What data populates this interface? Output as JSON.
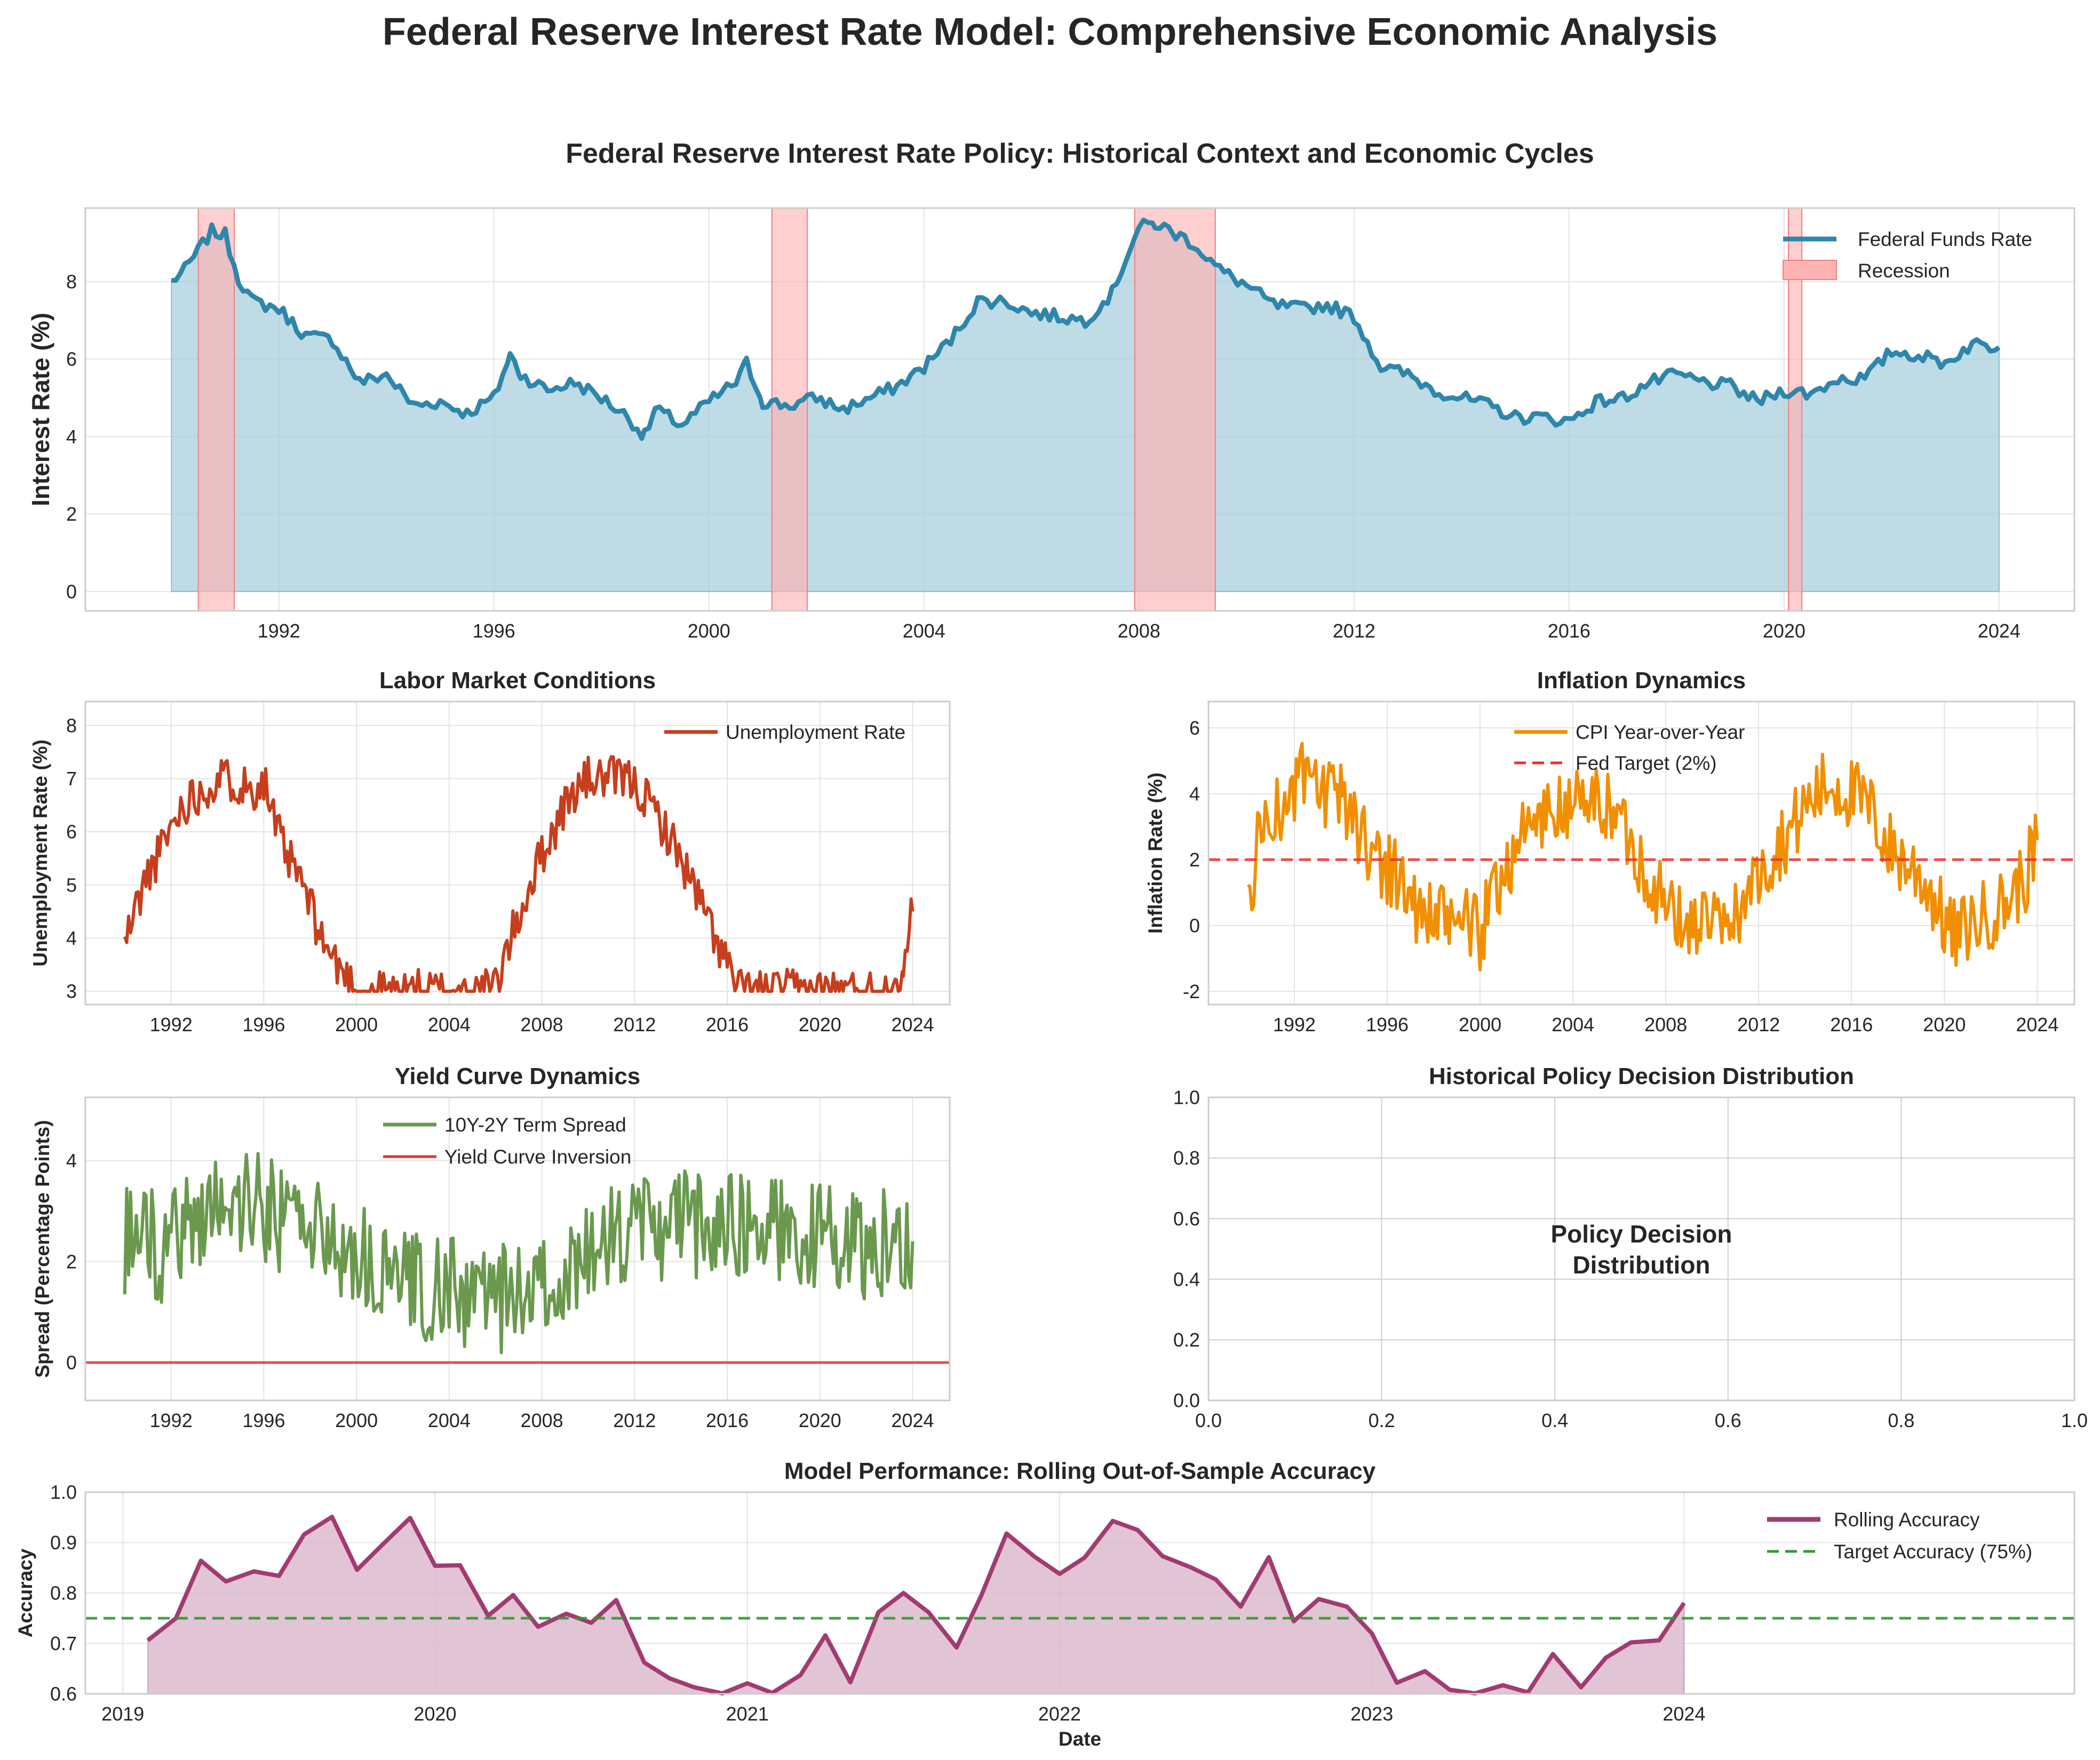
{
  "figure": {
    "suptitle": "Federal Reserve Interest Rate Model: Comprehensive Economic Analysis"
  },
  "chart_data": [
    {
      "id": "rates",
      "type": "area",
      "title": "Federal Reserve Interest Rate Policy: Historical Context and Economic Cycles",
      "xlabel": "",
      "ylabel": "Interest Rate (%)",
      "xlim": [
        1988.4,
        2025.4
      ],
      "ylim": [
        -0.5,
        9.9
      ],
      "yticks": [
        0,
        2,
        4,
        6,
        8
      ],
      "xticks": [
        1992,
        1996,
        2000,
        2004,
        2008,
        2012,
        2016,
        2020,
        2024
      ],
      "grid": true,
      "legend": "top-right",
      "colors": {
        "line": "#2e86ab",
        "fill": "#a9cfdd",
        "recession": "#ffb3b3"
      },
      "recessions": [
        [
          1990.5,
          1991.17
        ],
        [
          2001.17,
          2001.83
        ],
        [
          2007.92,
          2009.42
        ],
        [
          2020.08,
          2020.33
        ]
      ],
      "series": [
        {
          "name": "Federal Funds Rate",
          "x": [
            1990.0,
            1990.25,
            1990.5,
            1990.75,
            1991.0,
            1991.25,
            1991.5,
            1992.0,
            1992.5,
            1993.0,
            1993.5,
            1994.0,
            1994.5,
            1995.0,
            1995.5,
            1996.0,
            1996.3,
            1996.5,
            1997.0,
            1997.5,
            1998.0,
            1998.5,
            1998.8,
            1999.0,
            1999.5,
            2000.0,
            2000.5,
            2000.7,
            2001.0,
            2001.5,
            2002.0,
            2002.5,
            2003.0,
            2003.5,
            2004.0,
            2004.5,
            2005.0,
            2005.5,
            2006.0,
            2006.5,
            2007.0,
            2007.5,
            2007.75,
            2008.0,
            2008.3,
            2008.6,
            2009.0,
            2009.5,
            2010.0,
            2010.5,
            2011.0,
            2011.5,
            2012.0,
            2012.5,
            2013.0,
            2013.5,
            2014.0,
            2014.5,
            2015.0,
            2015.5,
            2016.0,
            2016.5,
            2017.0,
            2017.5,
            2018.0,
            2018.5,
            2019.0,
            2019.5,
            2020.0,
            2020.5,
            2021.0,
            2021.5,
            2022.0,
            2022.5,
            2023.0,
            2023.5,
            2024.0
          ],
          "values": [
            8.0,
            8.3,
            8.8,
            9.3,
            9.2,
            8.1,
            7.5,
            7.3,
            6.6,
            6.5,
            5.4,
            5.6,
            4.8,
            4.9,
            4.6,
            5.0,
            6.1,
            5.6,
            5.2,
            5.4,
            5.0,
            4.5,
            4.0,
            4.7,
            4.3,
            4.9,
            5.4,
            5.9,
            4.9,
            4.8,
            5.0,
            4.7,
            5.0,
            5.3,
            5.8,
            6.5,
            7.5,
            7.5,
            7.2,
            7.1,
            7.0,
            7.7,
            8.6,
            9.4,
            9.5,
            9.3,
            9.0,
            8.3,
            7.9,
            7.4,
            7.3,
            7.4,
            7.1,
            5.8,
            5.6,
            5.2,
            5.0,
            4.8,
            4.5,
            4.5,
            4.4,
            4.9,
            5.0,
            5.4,
            5.6,
            5.4,
            5.3,
            4.9,
            5.2,
            5.1,
            5.5,
            5.5,
            6.2,
            6.1,
            5.9,
            6.4,
            6.3
          ]
        }
      ],
      "recession_label": "Recession"
    },
    {
      "id": "labor",
      "type": "line",
      "title": "Labor Market Conditions",
      "xlabel": "",
      "ylabel": "Unemployment Rate (%)",
      "xlim": [
        1988.3,
        2025.6
      ],
      "ylim": [
        2.75,
        8.45
      ],
      "yticks": [
        3,
        4,
        5,
        6,
        7,
        8
      ],
      "xticks": [
        1992,
        1996,
        2000,
        2004,
        2008,
        2012,
        2016,
        2020,
        2024
      ],
      "grid": true,
      "legend": "top-right",
      "colors": {
        "line": "#c73e1d"
      },
      "series": [
        {
          "name": "Unemployment Rate",
          "x": [
            1990.0,
            1990.5,
            1991.0,
            1991.5,
            1992.0,
            1992.5,
            1993.0,
            1993.5,
            1994.0,
            1994.5,
            1995.0,
            1995.5,
            1996.0,
            1996.5,
            1997.0,
            1997.5,
            1998.0,
            1998.5,
            1999.0,
            1999.5,
            2000.0,
            2002.0,
            2004.0,
            2005.5,
            2006.0,
            2006.5,
            2007.0,
            2007.5,
            2008.0,
            2008.5,
            2009.0,
            2009.5,
            2010.0,
            2010.5,
            2011.0,
            2011.5,
            2012.0,
            2012.5,
            2013.0,
            2013.5,
            2014.0,
            2014.5,
            2015.0,
            2015.5,
            2016.0,
            2016.5,
            2018.0,
            2020.0,
            2022.0,
            2023.0,
            2023.3,
            2023.6,
            2024.0
          ],
          "values": [
            3.9,
            4.6,
            5.2,
            5.6,
            6.1,
            6.5,
            6.7,
            6.8,
            7.0,
            7.0,
            6.9,
            6.8,
            7.0,
            6.1,
            5.5,
            5.2,
            4.6,
            4.0,
            3.6,
            3.3,
            3.0,
            3.0,
            3.0,
            3.0,
            3.1,
            3.8,
            4.4,
            5.0,
            5.6,
            6.0,
            6.5,
            6.8,
            7.0,
            7.0,
            7.0,
            7.0,
            6.9,
            6.6,
            6.3,
            5.9,
            5.5,
            5.0,
            4.5,
            4.0,
            3.5,
            3.0,
            3.0,
            3.0,
            3.0,
            3.0,
            3.2,
            3.6,
            4.5
          ]
        }
      ]
    },
    {
      "id": "inflation",
      "type": "line",
      "title": "Inflation Dynamics",
      "xlabel": "",
      "ylabel": "Inflation Rate (%)",
      "xlim": [
        1988.3,
        2025.6
      ],
      "ylim": [
        -2.4,
        6.8
      ],
      "yticks": [
        -2,
        0,
        2,
        4,
        6
      ],
      "xticks": [
        1992,
        1996,
        2000,
        2004,
        2008,
        2012,
        2016,
        2020,
        2024
      ],
      "grid": true,
      "legend": "upper-center",
      "colors": {
        "line": "#f18f01",
        "target": "#e8302e"
      },
      "target_value": 2,
      "target_label": "Fed Target (2%)",
      "series": [
        {
          "name": "CPI Year-over-Year",
          "x": [
            1990.0,
            1990.5,
            1991.0,
            1991.5,
            1992.0,
            1992.5,
            1993.0,
            1993.5,
            1994.0,
            1994.5,
            1995.0,
            1995.5,
            1996.0,
            1996.5,
            1997.0,
            1997.5,
            1998.0,
            1998.5,
            1999.0,
            1999.5,
            2000.0,
            2000.5,
            2001.0,
            2001.5,
            2002.0,
            2002.5,
            2003.0,
            2003.5,
            2004.0,
            2004.5,
            2005.0,
            2005.5,
            2006.0,
            2006.5,
            2007.0,
            2007.5,
            2008.0,
            2008.5,
            2009.0,
            2009.5,
            2010.0,
            2010.5,
            2011.0,
            2011.5,
            2012.0,
            2012.5,
            2013.0,
            2013.5,
            2014.0,
            2014.5,
            2015.0,
            2015.5,
            2016.0,
            2016.5,
            2017.0,
            2017.5,
            2018.0,
            2018.5,
            2019.0,
            2019.5,
            2020.0,
            2020.5,
            2021.0,
            2021.5,
            2022.0,
            2022.5,
            2023.0,
            2023.5,
            2024.0
          ],
          "values": [
            0.5,
            2.8,
            3.6,
            3.3,
            4.2,
            4.5,
            4.0,
            3.8,
            3.9,
            3.4,
            2.6,
            2.2,
            1.8,
            1.5,
            0.8,
            0.3,
            0.2,
            0.0,
            0.4,
            0.1,
            -0.4,
            0.9,
            1.6,
            2.4,
            2.9,
            3.2,
            3.5,
            3.4,
            3.9,
            3.6,
            3.8,
            3.6,
            3.3,
            2.6,
            1.8,
            1.3,
            0.6,
            0.2,
            -0.1,
            0.3,
            0.1,
            -0.3,
            0.4,
            0.9,
            1.5,
            2.1,
            2.6,
            3.0,
            3.6,
            4.0,
            4.3,
            4.2,
            4.0,
            3.7,
            3.3,
            2.5,
            2.1,
            1.8,
            1.5,
            0.9,
            0.1,
            -0.4,
            0.0,
            0.2,
            0.4,
            0.6,
            1.0,
            1.5,
            2.6
          ]
        }
      ]
    },
    {
      "id": "yield",
      "type": "line",
      "title": "Yield Curve Dynamics",
      "xlabel": "",
      "ylabel": "Spread (Percentage Points)",
      "xlim": [
        1988.3,
        2025.6
      ],
      "ylim": [
        -0.75,
        5.25
      ],
      "yticks": [
        0,
        2,
        4
      ],
      "xticks": [
        1992,
        1996,
        2000,
        2004,
        2008,
        2012,
        2016,
        2020,
        2024
      ],
      "grid": true,
      "legend": "upper-center",
      "colors": {
        "line": "#6a994e",
        "zero": "#e8302e"
      },
      "zero_label": "Yield Curve Inversion",
      "series": [
        {
          "name": "10Y-2Y Term Spread",
          "x": [
            1990.0,
            1990.5,
            1991.0,
            1991.5,
            1992.0,
            1992.5,
            1993.0,
            1993.5,
            1994.0,
            1994.5,
            1995.0,
            1995.5,
            1996.0,
            1996.5,
            1997.0,
            1997.5,
            1998.0,
            1998.5,
            1999.0,
            1999.5,
            2000.0,
            2000.5,
            2001.0,
            2001.5,
            2002.0,
            2002.5,
            2003.0,
            2003.5,
            2004.0,
            2004.5,
            2005.0,
            2005.5,
            2006.0,
            2006.5,
            2007.0,
            2007.5,
            2008.0,
            2008.5,
            2009.0,
            2009.5,
            2010.0,
            2010.5,
            2011.0,
            2011.5,
            2012.0,
            2012.5,
            2013.0,
            2013.5,
            2014.0,
            2014.5,
            2015.0,
            2015.5,
            2016.0,
            2016.5,
            2017.0,
            2017.5,
            2018.0,
            2018.5,
            2019.0,
            2019.5,
            2020.0,
            2020.5,
            2021.0,
            2021.5,
            2022.0,
            2022.5,
            2023.0,
            2023.5,
            2024.0
          ],
          "values": [
            2.3,
            2.6,
            2.4,
            2.2,
            2.4,
            2.7,
            2.9,
            3.0,
            3.1,
            3.2,
            3.2,
            3.1,
            3.0,
            2.9,
            2.9,
            2.8,
            2.7,
            2.5,
            2.4,
            2.3,
            2.1,
            1.9,
            1.7,
            1.6,
            1.6,
            1.5,
            1.5,
            1.4,
            1.4,
            1.3,
            1.3,
            1.3,
            1.2,
            1.3,
            1.3,
            1.4,
            1.5,
            1.6,
            1.8,
            1.9,
            2.1,
            2.2,
            2.4,
            2.5,
            2.6,
            2.6,
            2.7,
            2.7,
            2.7,
            2.8,
            2.7,
            2.8,
            2.7,
            2.8,
            2.8,
            2.7,
            2.7,
            2.6,
            2.6,
            2.5,
            2.5,
            2.4,
            2.4,
            2.4,
            2.3,
            2.4,
            2.3,
            2.4,
            2.4
          ]
        }
      ]
    },
    {
      "id": "policy",
      "type": "scatter",
      "title": "Historical Policy Decision Distribution",
      "center_text_line1": "Policy Decision",
      "center_text_line2": "Distribution",
      "xlim": [
        0,
        1
      ],
      "ylim": [
        0,
        1
      ],
      "xticks": [
        "0.0",
        "0.2",
        "0.4",
        "0.6",
        "0.8",
        "1.0"
      ],
      "yticks": [
        "0.0",
        "0.2",
        "0.4",
        "0.6",
        "0.8",
        "1.0"
      ],
      "grid": true
    },
    {
      "id": "accuracy",
      "type": "area",
      "title": "Model Performance: Rolling Out-of-Sample Accuracy",
      "xlabel": "Date",
      "ylabel": "Accuracy",
      "xlim": [
        2018.88,
        2025.25
      ],
      "ylim": [
        0.6,
        1.0
      ],
      "yticks": [
        "0.6",
        "0.7",
        "0.8",
        "0.9",
        "1.0"
      ],
      "xticks": [
        "2019",
        "2020",
        "2021",
        "2022",
        "2023",
        "2024"
      ],
      "grid": true,
      "legend": "top-right",
      "colors": {
        "line": "#a23b72",
        "fill": "#dbb7ca",
        "target": "#2e9a33"
      },
      "target_value": 0.75,
      "target_label": "Target Accuracy (75%)",
      "series": [
        {
          "name": "Rolling Accuracy",
          "x": [
            2019.08,
            2019.17,
            2019.25,
            2019.33,
            2019.42,
            2019.5,
            2019.58,
            2019.67,
            2019.75,
            2019.83,
            2019.92,
            2020.0,
            2020.08,
            2020.17,
            2020.25,
            2020.33,
            2020.42,
            2020.5,
            2020.58,
            2020.67,
            2020.75,
            2020.83,
            2020.92,
            2021.0,
            2021.08,
            2021.17,
            2021.25,
            2021.33,
            2021.42,
            2021.5,
            2021.58,
            2021.67,
            2021.75,
            2021.83,
            2021.92,
            2022.0,
            2022.08,
            2022.17,
            2022.25,
            2022.33,
            2022.42,
            2022.5,
            2022.58,
            2022.67,
            2022.75,
            2022.83,
            2022.92,
            2023.0,
            2023.08,
            2023.17,
            2023.25,
            2023.33,
            2023.42,
            2023.5,
            2023.58,
            2023.67,
            2023.75,
            2023.83,
            2023.92,
            2024.0
          ],
          "values": [
            0.706,
            0.75,
            0.864,
            0.823,
            0.843,
            0.834,
            0.916,
            0.951,
            0.846,
            0.895,
            0.949,
            0.854,
            0.855,
            0.755,
            0.796,
            0.733,
            0.759,
            0.741,
            0.786,
            0.662,
            0.631,
            0.613,
            0.601,
            0.621,
            0.602,
            0.637,
            0.716,
            0.623,
            0.762,
            0.8,
            0.762,
            0.692,
            0.796,
            0.918,
            0.872,
            0.838,
            0.87,
            0.943,
            0.925,
            0.873,
            0.851,
            0.827,
            0.773,
            0.871,
            0.744,
            0.788,
            0.773,
            0.72,
            0.622,
            0.645,
            0.608,
            0.601,
            0.617,
            0.603,
            0.679,
            0.613,
            0.672,
            0.702,
            0.706,
            0.78
          ]
        }
      ]
    }
  ]
}
